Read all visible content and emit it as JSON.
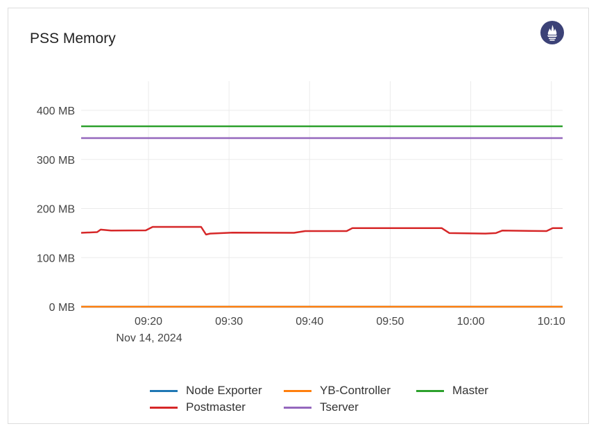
{
  "panel": {
    "title": "PSS Memory",
    "logo_icon": "prometheus-icon",
    "logo_color": "#3c4277"
  },
  "chart_data": {
    "type": "line",
    "title": "PSS Memory",
    "xlabel": "",
    "ylabel": "",
    "x_date_label": "Nov 14, 2024",
    "xlim": [
      "09:11:39",
      "10:11:24"
    ],
    "ylim": [
      0,
      440
    ],
    "y_unit": "MB",
    "x_ticks": [
      "09:20",
      "09:30",
      "09:40",
      "09:50",
      "10:00",
      "10:10"
    ],
    "y_ticks": [
      0,
      100,
      200,
      300,
      400
    ],
    "y_tick_labels": [
      "0 MB",
      "100 MB",
      "200 MB",
      "300 MB",
      "400 MB"
    ],
    "grid": true,
    "legend_position": "bottom",
    "series": [
      {
        "name": "Node Exporter",
        "color": "#1f77b4",
        "x": [
          "09:11:39",
          "10:11:24"
        ],
        "values": [
          0,
          0
        ]
      },
      {
        "name": "YB-Controller",
        "color": "#ff7f0e",
        "x": [
          "09:11:39",
          "10:11:24"
        ],
        "values": [
          0,
          0
        ]
      },
      {
        "name": "Master",
        "color": "#2ca02c",
        "x": [
          "09:11:39",
          "10:11:24"
        ],
        "values": [
          367.5,
          367.5
        ]
      },
      {
        "name": "Postmaster",
        "color": "#d62728",
        "x": [
          "09:11:39",
          "09:13:38",
          "09:14:04",
          "09:15:21",
          "09:19:40",
          "09:20:31",
          "09:26:32",
          "09:27:09",
          "09:27:40",
          "09:30:25",
          "09:38:04",
          "09:39:27",
          "09:44:36",
          "09:45:18",
          "09:56:24",
          "09:57:21",
          "10:01:49",
          "10:03:07",
          "10:03:54",
          "10:09:24",
          "10:10:10",
          "10:11:24"
        ],
        "values": [
          150.5,
          152,
          157,
          155,
          155.5,
          162.5,
          162.5,
          147,
          149,
          151,
          150.5,
          154,
          154,
          160,
          160,
          150,
          149,
          150,
          155,
          154,
          160,
          160
        ]
      },
      {
        "name": "Tserver",
        "color": "#9467bd",
        "x": [
          "09:11:39",
          "10:11:24"
        ],
        "values": [
          343.5,
          343.5
        ]
      }
    ]
  }
}
